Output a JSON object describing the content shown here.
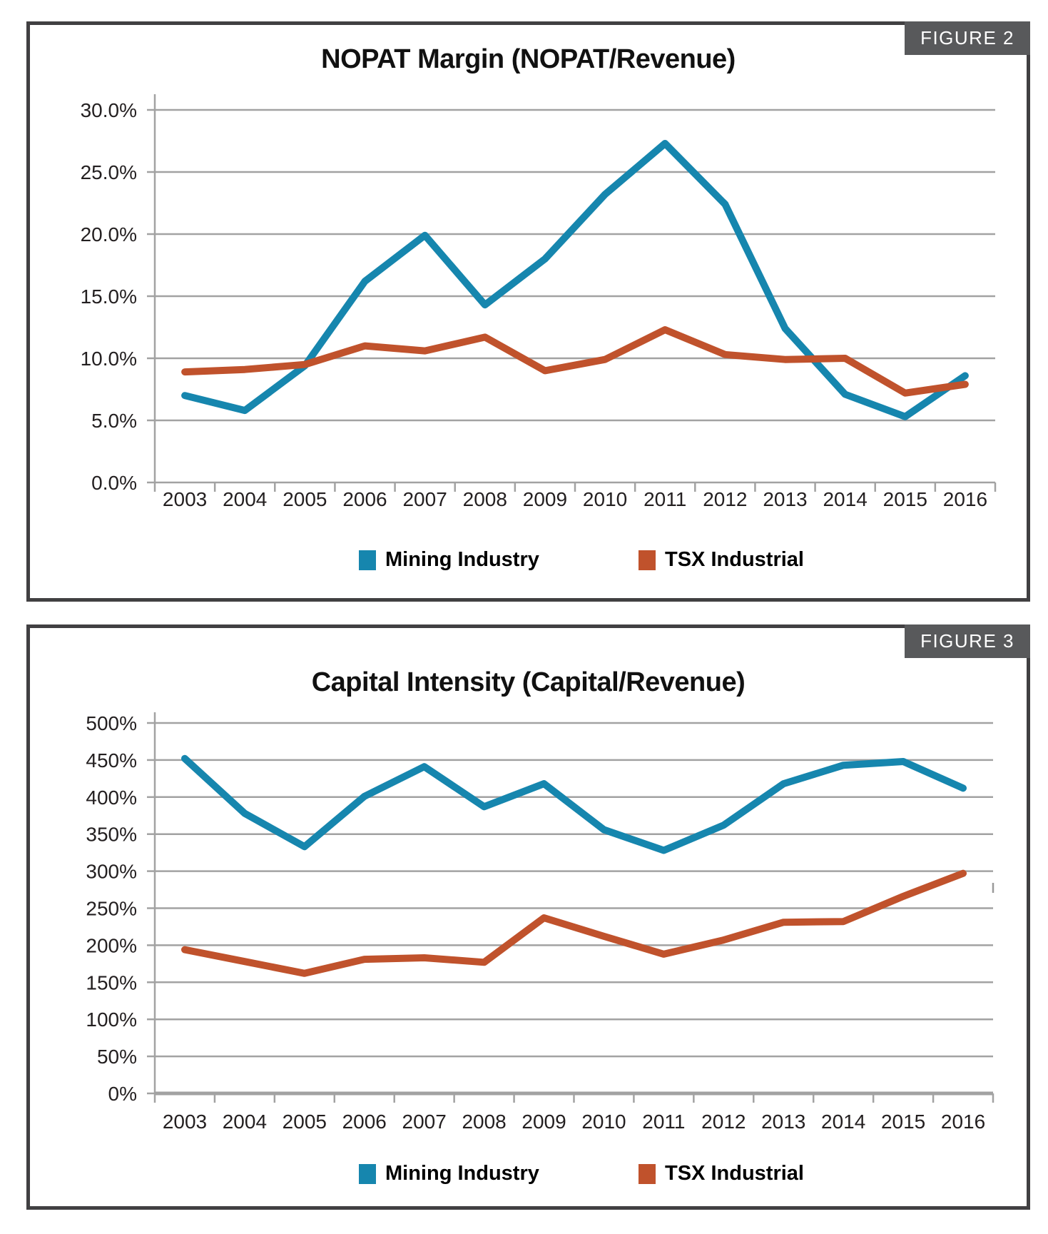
{
  "page": {
    "background": "#ffffff"
  },
  "colors": {
    "mining": "#1686AE",
    "tsx": "#C0522C",
    "grid": "#A2A2A2",
    "axis": "#A2A2A2",
    "panel_border": "#414042",
    "badge_bg": "#58595B",
    "badge_text": "#FFFFFF",
    "tick_text": "#231F20"
  },
  "figures": [
    {
      "badge": "FIGURE 2"
    },
    {
      "badge": "FIGURE 3"
    }
  ],
  "chart_data": [
    {
      "type": "line",
      "title": "NOPAT Margin (NOPAT/Revenue)",
      "categories": [
        "2003",
        "2004",
        "2005",
        "2006",
        "2007",
        "2008",
        "2009",
        "2010",
        "2011",
        "2012",
        "2013",
        "2014",
        "2015",
        "2016"
      ],
      "series": [
        {
          "name": "Mining Industry",
          "color": "#1686AE",
          "values": [
            7.0,
            5.8,
            9.4,
            16.2,
            19.9,
            14.3,
            18.0,
            23.2,
            27.3,
            22.4,
            12.4,
            7.1,
            5.3,
            8.6
          ]
        },
        {
          "name": "TSX Industrial",
          "color": "#C0522C",
          "values": [
            8.9,
            9.1,
            9.5,
            11.0,
            10.6,
            11.7,
            9.0,
            9.9,
            12.3,
            10.3,
            9.9,
            10.0,
            7.2,
            7.9
          ]
        }
      ],
      "ylim": [
        0,
        30
      ],
      "ytick_labels": [
        "0.0%",
        "5.0%",
        "10.0%",
        "15.0%",
        "20.0%",
        "25.0%",
        "30.0%"
      ],
      "xlabel": "",
      "ylabel": "",
      "grid": true,
      "legend_position": "bottom"
    },
    {
      "type": "line",
      "title": "Capital Intensity (Capital/Revenue)",
      "categories": [
        "2003",
        "2004",
        "2005",
        "2006",
        "2007",
        "2008",
        "2009",
        "2010",
        "2011",
        "2012",
        "2013",
        "2014",
        "2015",
        "2016"
      ],
      "series": [
        {
          "name": "Mining Industry",
          "color": "#1686AE",
          "values": [
            452,
            378,
            333,
            401,
            441,
            387,
            418,
            356,
            328,
            362,
            418,
            443,
            448,
            412
          ]
        },
        {
          "name": "TSX Industrial",
          "color": "#C0522C",
          "values": [
            194,
            178,
            162,
            181,
            183,
            177,
            237,
            212,
            188,
            207,
            231,
            232,
            266,
            297
          ]
        }
      ],
      "ylim": [
        0,
        500
      ],
      "ytick_labels": [
        "0%",
        "50%",
        "100%",
        "150%",
        "200%",
        "250%",
        "300%",
        "350%",
        "400%",
        "450%",
        "500%"
      ],
      "xlabel": "",
      "ylabel": "",
      "grid": true,
      "legend_position": "bottom"
    }
  ]
}
